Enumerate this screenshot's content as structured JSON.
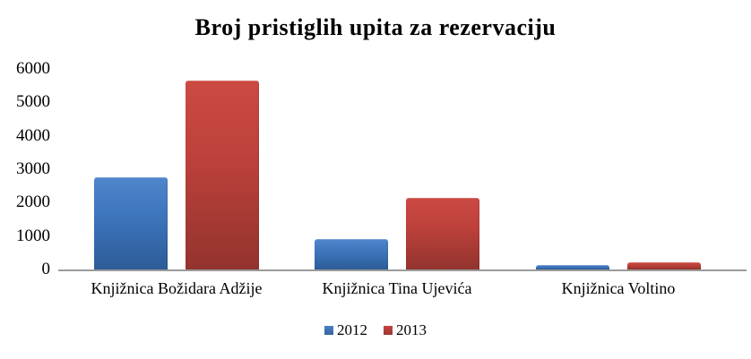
{
  "title": "Broj pristiglih upita za rezervaciju",
  "chart_data": {
    "type": "bar",
    "title": "Broj pristiglih upita za rezervaciju",
    "categories": [
      "Knjižnica Božidara Adžije",
      "Knjižnica Tina Ujevića",
      "Knjižnica Voltino"
    ],
    "series": [
      {
        "name": "2012",
        "color": "#3E76BE",
        "values": [
          2750,
          900,
          140
        ]
      },
      {
        "name": "2013",
        "color": "#BE413B",
        "values": [
          5650,
          2150,
          220
        ]
      }
    ],
    "xlabel": "",
    "ylabel": "",
    "ylim": [
      0,
      6000
    ],
    "yticks": [
      0,
      1000,
      2000,
      3000,
      4000,
      5000,
      6000
    ],
    "grid": false,
    "legend_position": "bottom",
    "background": "#ffffff",
    "axis_line_color": "#9b9b9b"
  }
}
